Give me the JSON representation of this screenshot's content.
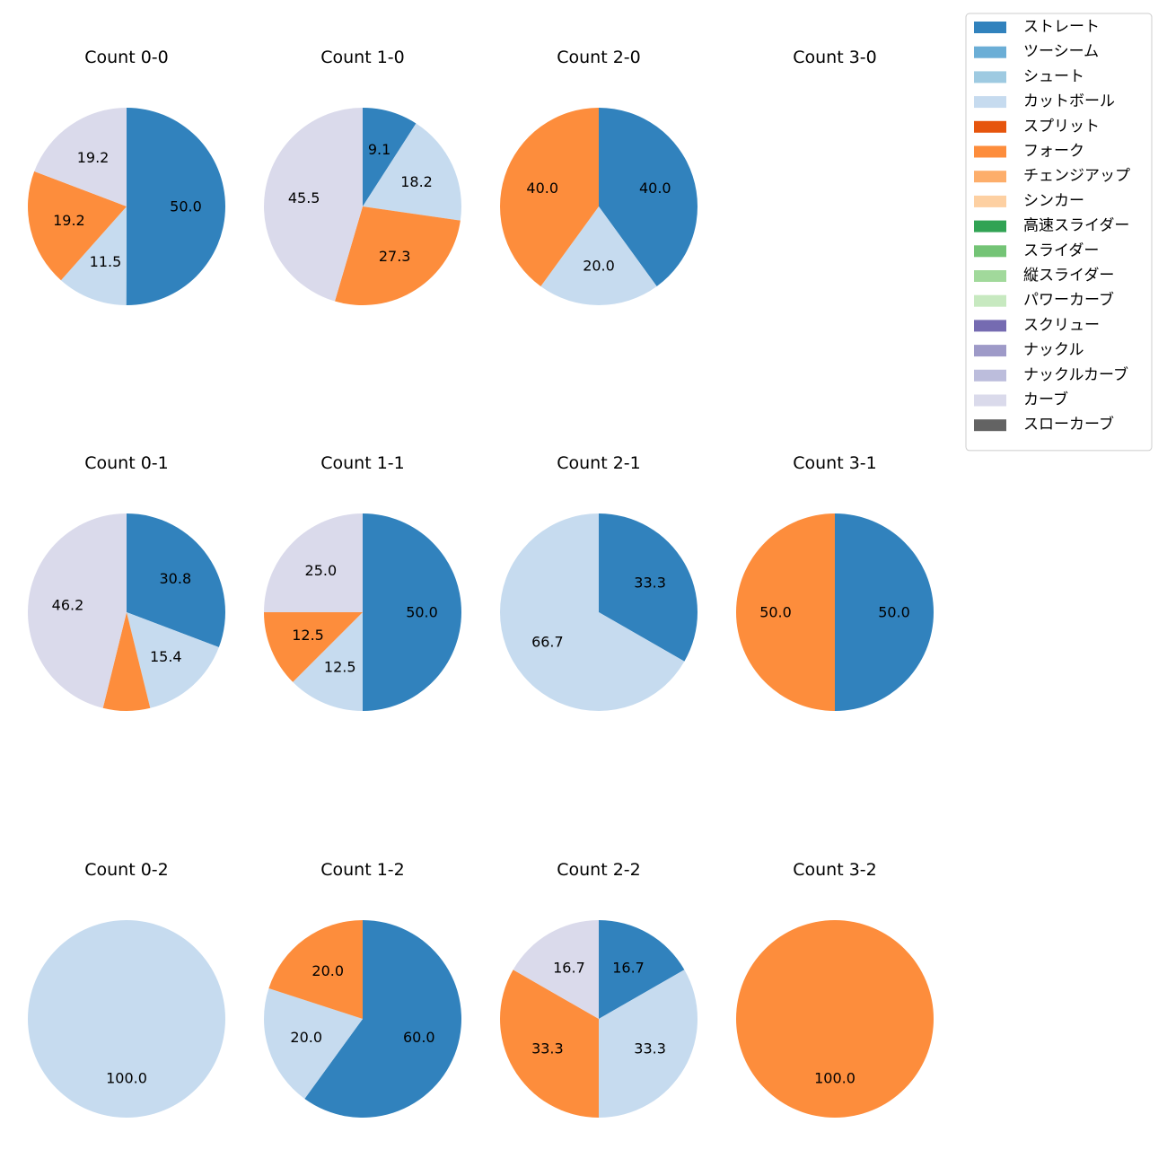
{
  "pitch_types": [
    {
      "name": "ストレート",
      "color": "#3182bd"
    },
    {
      "name": "ツーシーム",
      "color": "#6baed6"
    },
    {
      "name": "シュート",
      "color": "#9ecae1"
    },
    {
      "name": "カットボール",
      "color": "#c6dbef"
    },
    {
      "name": "スプリット",
      "color": "#e6550d"
    },
    {
      "name": "フォーク",
      "color": "#fd8d3c"
    },
    {
      "name": "チェンジアップ",
      "color": "#fdae6b"
    },
    {
      "name": "シンカー",
      "color": "#fdd0a2"
    },
    {
      "name": "高速スライダー",
      "color": "#31a354"
    },
    {
      "name": "スライダー",
      "color": "#74c476"
    },
    {
      "name": "縦スライダー",
      "color": "#a1d99b"
    },
    {
      "name": "パワーカーブ",
      "color": "#c7e9c0"
    },
    {
      "name": "スクリュー",
      "color": "#756bb1"
    },
    {
      "name": "ナックル",
      "color": "#9e9ac8"
    },
    {
      "name": "ナックルカーブ",
      "color": "#bcbddc"
    },
    {
      "name": "カーブ",
      "color": "#dadaeb"
    },
    {
      "name": "スローカーブ",
      "color": "#636363"
    }
  ],
  "chart_data": [
    {
      "type": "pie",
      "title": "Count 0-0",
      "slices": [
        {
          "label": "ストレート",
          "value": 50.0,
          "text": "50.0"
        },
        {
          "label": "カットボール",
          "value": 11.5,
          "text": "11.5"
        },
        {
          "label": "フォーク",
          "value": 19.2,
          "text": "19.2"
        },
        {
          "label": "カーブ",
          "value": 19.2,
          "text": "19.2"
        }
      ]
    },
    {
      "type": "pie",
      "title": "Count 1-0",
      "slices": [
        {
          "label": "ストレート",
          "value": 9.1,
          "text": "9.1"
        },
        {
          "label": "カットボール",
          "value": 18.2,
          "text": "18.2"
        },
        {
          "label": "フォーク",
          "value": 27.3,
          "text": "27.3"
        },
        {
          "label": "カーブ",
          "value": 45.5,
          "text": "45.5"
        }
      ]
    },
    {
      "type": "pie",
      "title": "Count 2-0",
      "slices": [
        {
          "label": "ストレート",
          "value": 40.0,
          "text": "40.0"
        },
        {
          "label": "カットボール",
          "value": 20.0,
          "text": "20.0"
        },
        {
          "label": "フォーク",
          "value": 40.0,
          "text": "40.0"
        }
      ]
    },
    {
      "type": "pie",
      "title": "Count 3-0",
      "slices": []
    },
    {
      "type": "pie",
      "title": "Count 0-1",
      "slices": [
        {
          "label": "ストレート",
          "value": 30.8,
          "text": "30.8"
        },
        {
          "label": "カットボール",
          "value": 15.4,
          "text": "15.4"
        },
        {
          "label": "フォーク",
          "value": 7.7,
          "text": ""
        },
        {
          "label": "カーブ",
          "value": 46.2,
          "text": "46.2"
        }
      ]
    },
    {
      "type": "pie",
      "title": "Count 1-1",
      "slices": [
        {
          "label": "ストレート",
          "value": 50.0,
          "text": "50.0"
        },
        {
          "label": "カットボール",
          "value": 12.5,
          "text": "12.5"
        },
        {
          "label": "フォーク",
          "value": 12.5,
          "text": "12.5"
        },
        {
          "label": "カーブ",
          "value": 25.0,
          "text": "25.0"
        }
      ]
    },
    {
      "type": "pie",
      "title": "Count 2-1",
      "slices": [
        {
          "label": "ストレート",
          "value": 33.3,
          "text": "33.3"
        },
        {
          "label": "カットボール",
          "value": 66.7,
          "text": "66.7"
        }
      ]
    },
    {
      "type": "pie",
      "title": "Count 3-1",
      "slices": [
        {
          "label": "ストレート",
          "value": 50.0,
          "text": "50.0"
        },
        {
          "label": "フォーク",
          "value": 50.0,
          "text": "50.0"
        }
      ]
    },
    {
      "type": "pie",
      "title": "Count 0-2",
      "slices": [
        {
          "label": "カットボール",
          "value": 100.0,
          "text": "100.0"
        }
      ]
    },
    {
      "type": "pie",
      "title": "Count 1-2",
      "slices": [
        {
          "label": "ストレート",
          "value": 60.0,
          "text": "60.0"
        },
        {
          "label": "カットボール",
          "value": 20.0,
          "text": "20.0"
        },
        {
          "label": "フォーク",
          "value": 20.0,
          "text": "20.0"
        }
      ]
    },
    {
      "type": "pie",
      "title": "Count 2-2",
      "slices": [
        {
          "label": "ストレート",
          "value": 16.7,
          "text": "16.7"
        },
        {
          "label": "カットボール",
          "value": 33.3,
          "text": "33.3"
        },
        {
          "label": "フォーク",
          "value": 33.3,
          "text": "33.3"
        },
        {
          "label": "カーブ",
          "value": 16.7,
          "text": "16.7"
        }
      ]
    },
    {
      "type": "pie",
      "title": "Count 3-2",
      "slices": [
        {
          "label": "フォーク",
          "value": 100.0,
          "text": "100.0"
        }
      ]
    }
  ]
}
